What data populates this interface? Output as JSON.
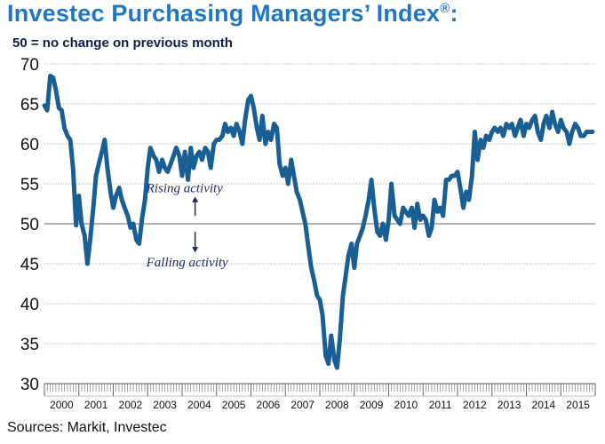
{
  "title": "Investec Purchasing Managers’ Index",
  "title_mark": "®",
  "title_suffix": ":",
  "subtitle": "50 =  no change on previous month",
  "source": "Sources: Markit, Investec",
  "colors": {
    "line": "#1a5f94",
    "title": "#1f77c4",
    "grid": "#bcbcbc",
    "arrow": "#1b2a66"
  },
  "chart_data": {
    "type": "line",
    "title": "Investec Purchasing Managers’ Index",
    "xlabel": "",
    "ylabel": "",
    "ylim": [
      30,
      70
    ],
    "yticks": [
      30,
      35,
      40,
      45,
      50,
      55,
      60,
      65,
      70
    ],
    "xticks": [
      "2000",
      "2001",
      "2002",
      "2003",
      "2004",
      "2005",
      "2006",
      "2007",
      "2008",
      "2009",
      "2010",
      "2011",
      "2012",
      "2013",
      "2014",
      "2015"
    ],
    "grid": "horizontal",
    "annotations": [
      {
        "text": "Rising activity",
        "x": 2004.3,
        "y": 54.5,
        "arrow": "up"
      },
      {
        "text": "Falling activity",
        "x": 2004.3,
        "y": 45.2,
        "arrow": "down"
      }
    ],
    "series": [
      {
        "name": "",
        "x": [
          2000.0,
          2000.08,
          2000.17,
          2000.25,
          2000.33,
          2000.42,
          2000.5,
          2000.58,
          2000.67,
          2000.75,
          2000.83,
          2000.92,
          2001.0,
          2001.08,
          2001.17,
          2001.25,
          2001.33,
          2001.42,
          2001.5,
          2001.58,
          2001.67,
          2001.75,
          2001.83,
          2001.92,
          2002.0,
          2002.08,
          2002.17,
          2002.25,
          2002.33,
          2002.42,
          2002.5,
          2002.58,
          2002.67,
          2002.75,
          2002.83,
          2002.92,
          2003.0,
          2003.08,
          2003.17,
          2003.25,
          2003.33,
          2003.42,
          2003.5,
          2003.58,
          2003.67,
          2003.75,
          2003.83,
          2003.92,
          2004.0,
          2004.08,
          2004.17,
          2004.25,
          2004.33,
          2004.42,
          2004.5,
          2004.58,
          2004.67,
          2004.75,
          2004.83,
          2004.92,
          2005.0,
          2005.08,
          2005.17,
          2005.25,
          2005.33,
          2005.42,
          2005.5,
          2005.58,
          2005.67,
          2005.75,
          2005.83,
          2005.92,
          2006.0,
          2006.08,
          2006.17,
          2006.25,
          2006.33,
          2006.42,
          2006.5,
          2006.58,
          2006.67,
          2006.75,
          2006.83,
          2006.92,
          2007.0,
          2007.08,
          2007.17,
          2007.25,
          2007.33,
          2007.42,
          2007.5,
          2007.58,
          2007.67,
          2007.75,
          2007.83,
          2007.92,
          2008.0,
          2008.08,
          2008.17,
          2008.25,
          2008.33,
          2008.42,
          2008.5,
          2008.58,
          2008.67,
          2008.75,
          2008.83,
          2008.92,
          2009.0,
          2009.08,
          2009.17,
          2009.25,
          2009.33,
          2009.42,
          2009.5,
          2009.58,
          2009.67,
          2009.75,
          2009.83,
          2009.92,
          2010.0,
          2010.08,
          2010.17,
          2010.25,
          2010.33,
          2010.42,
          2010.5,
          2010.58,
          2010.67,
          2010.75,
          2010.83,
          2010.92,
          2011.0,
          2011.08,
          2011.17,
          2011.25,
          2011.33,
          2011.42,
          2011.5,
          2011.58,
          2011.67,
          2011.75,
          2011.83,
          2011.92,
          2012.0,
          2012.08,
          2012.17,
          2012.25,
          2012.33,
          2012.42,
          2012.5,
          2012.58,
          2012.67,
          2012.75,
          2012.83,
          2012.92,
          2013.0,
          2013.08,
          2013.17,
          2013.25,
          2013.33,
          2013.42,
          2013.5,
          2013.58,
          2013.67,
          2013.75,
          2013.83,
          2013.92,
          2014.0,
          2014.08,
          2014.17,
          2014.25,
          2014.33,
          2014.42,
          2014.5,
          2014.58,
          2014.67,
          2014.75,
          2014.83,
          2014.92,
          2015.0,
          2015.08,
          2015.17,
          2015.25,
          2015.33,
          2015.42,
          2015.5,
          2015.58,
          2015.67,
          2015.75,
          2015.83,
          2015.92
        ],
        "y": [
          64.8,
          64.2,
          68.5,
          68.3,
          66.8,
          64.5,
          64.2,
          62.0,
          61.0,
          60.5,
          57.0,
          49.8,
          53.5,
          50.0,
          48.5,
          45.0,
          48.0,
          52.0,
          56.0,
          57.5,
          59.0,
          60.5,
          57.0,
          54.0,
          52.0,
          53.5,
          54.5,
          53.0,
          52.0,
          51.0,
          49.5,
          50.0,
          48.0,
          47.5,
          50.5,
          53.0,
          57.0,
          59.5,
          58.5,
          58.0,
          56.5,
          58.0,
          57.0,
          56.5,
          57.5,
          58.5,
          59.5,
          58.5,
          56.0,
          59.0,
          55.5,
          59.5,
          57.0,
          58.5,
          59.0,
          58.0,
          59.5,
          59.0,
          57.0,
          60.0,
          60.5,
          60.5,
          61.0,
          62.5,
          61.5,
          62.0,
          61.0,
          62.5,
          61.5,
          60.0,
          63.0,
          65.5,
          66.0,
          64.5,
          62.0,
          60.5,
          63.5,
          60.0,
          61.5,
          60.5,
          62.5,
          62.0,
          57.5,
          56.0,
          57.0,
          55.0,
          58.0,
          56.0,
          54.0,
          53.0,
          51.5,
          50.0,
          47.0,
          44.5,
          43.0,
          41.0,
          40.5,
          38.5,
          33.5,
          32.5,
          36.0,
          33.0,
          32.0,
          35.5,
          41.0,
          43.5,
          46.0,
          47.5,
          44.5,
          47.5,
          48.5,
          49.5,
          51.0,
          53.0,
          55.5,
          52.0,
          49.0,
          48.5,
          50.0,
          48.0,
          50.5,
          55.0,
          51.0,
          50.5,
          50.0,
          52.0,
          51.5,
          51.0,
          52.0,
          49.5,
          52.5,
          50.5,
          51.0,
          50.5,
          48.5,
          49.5,
          53.0,
          51.5,
          52.0,
          51.0,
          55.5,
          55.5,
          56.0,
          56.0,
          56.5,
          54.5,
          52.0,
          54.0,
          53.0,
          56.0,
          61.5,
          58.0,
          60.5,
          59.5,
          61.0,
          60.5,
          61.5,
          62.0,
          61.5,
          62.0,
          61.0,
          62.5,
          62.0,
          62.5,
          61.0,
          62.0,
          63.0,
          61.0,
          62.5,
          62.0,
          63.0,
          63.5,
          61.5,
          60.5,
          62.5,
          63.5,
          62.0,
          64.0,
          62.5,
          61.5,
          63.0,
          62.0,
          61.5,
          60.0,
          61.5,
          62.5,
          62.0,
          61.0,
          61.0,
          61.5,
          61.5,
          61.5
        ]
      }
    ]
  }
}
